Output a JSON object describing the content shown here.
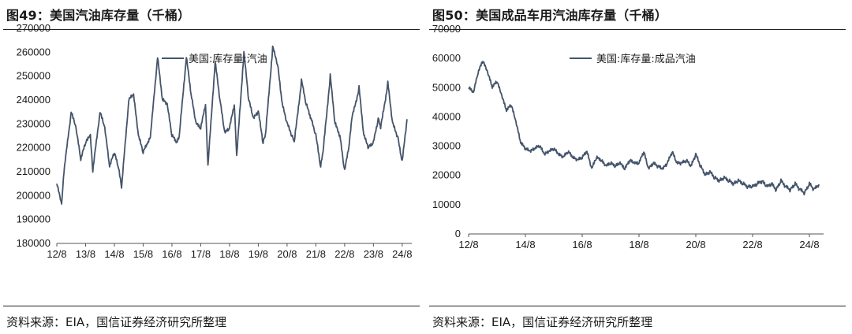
{
  "charts": [
    {
      "title": "图49：美国汽油库存量（千桶）",
      "source": "资料来源：EIA，国信证券经济研究所整理",
      "chart_data": {
        "type": "line",
        "title": "图49：美国汽油库存量（千桶）",
        "xlabel": "",
        "ylabel": "",
        "ylim": [
          180000,
          270000
        ],
        "yticks": [
          "180000",
          "190000",
          "200000",
          "210000",
          "220000",
          "230000",
          "240000",
          "250000",
          "260000",
          "270000"
        ],
        "xticks": [
          "12/8",
          "13/8",
          "14/8",
          "15/8",
          "16/8",
          "17/8",
          "18/8",
          "19/8",
          "20/8",
          "21/8",
          "22/8",
          "23/8",
          "24/8"
        ],
        "legend_position": "top-center",
        "grid": false,
        "color": "#44546a",
        "series": [
          {
            "name": "美国:库存量:汽油",
            "x": [
              "12/8",
              "12/10",
              "12/11",
              "13/2",
              "13/4",
              "13/6",
              "13/8",
              "13/10",
              "13/11",
              "14/2",
              "14/4",
              "14/6",
              "14/8",
              "14/10",
              "14/11",
              "15/2",
              "15/4",
              "15/6",
              "15/8",
              "15/10",
              "15/11",
              "16/2",
              "16/4",
              "16/6",
              "16/8",
              "16/10",
              "16/11",
              "17/2",
              "17/4",
              "17/6",
              "17/8",
              "17/10",
              "17/11",
              "18/2",
              "18/4",
              "18/6",
              "18/8",
              "18/10",
              "18/11",
              "19/2",
              "19/4",
              "19/6",
              "19/8",
              "19/10",
              "19/11",
              "20/2",
              "20/4",
              "20/6",
              "20/8",
              "20/10",
              "20/11",
              "21/2",
              "21/4",
              "21/6",
              "21/8",
              "21/10",
              "21/11",
              "22/2",
              "22/4",
              "22/6",
              "22/8",
              "22/10",
              "22/11",
              "23/2",
              "23/4",
              "23/6",
              "23/8",
              "23/10",
              "23/11",
              "24/2",
              "24/4",
              "24/6",
              "24/8",
              "24/10"
            ],
            "values": [
              205000,
              196000,
              210000,
              235000,
              228000,
              215000,
              222000,
              225000,
              210000,
              235000,
              228000,
              212000,
              218000,
              210000,
              203000,
              240000,
              242000,
              225000,
              218000,
              222000,
              224000,
              258000,
              240000,
              238000,
              225000,
              222000,
              224000,
              258000,
              242000,
              230000,
              228000,
              238000,
              212000,
              256000,
              240000,
              226000,
              228000,
              238000,
              216000,
              260000,
              240000,
              232000,
              235000,
              222000,
              225000,
              262000,
              255000,
              238000,
              230000,
              225000,
              222000,
              248000,
              238000,
              232000,
              225000,
              212000,
              218000,
              250000,
              230000,
              225000,
              210000,
              222000,
              232000,
              245000,
              225000,
              220000,
              222000,
              232000,
              228000,
              247000,
              230000,
              225000,
              214000,
              232000
            ]
          }
        ]
      }
    },
    {
      "title": "图50：美国成品车用汽油库存量（千桶）",
      "source": "资料来源：EIA，国信证券经济研究所整理",
      "chart_data": {
        "type": "line",
        "title": "图50：美国成品车用汽油库存量（千桶）",
        "xlabel": "",
        "ylabel": "",
        "ylim": [
          0,
          70000
        ],
        "yticks": [
          "0",
          "10000",
          "20000",
          "30000",
          "40000",
          "50000",
          "60000",
          "70000"
        ],
        "xticks": [
          "12/8",
          "14/8",
          "16/8",
          "18/8",
          "20/8",
          "22/8",
          "24/8"
        ],
        "legend_position": "top-center",
        "grid": false,
        "color": "#44546a",
        "series": [
          {
            "name": "美国:库存量:成品汽油",
            "x": [
              "12/8",
              "12/10",
              "12/12",
              "13/2",
              "13/4",
              "13/6",
              "13/8",
              "13/10",
              "13/12",
              "14/2",
              "14/4",
              "14/6",
              "14/8",
              "14/10",
              "14/12",
              "15/2",
              "15/4",
              "15/6",
              "15/8",
              "15/10",
              "15/12",
              "16/2",
              "16/4",
              "16/6",
              "16/8",
              "16/10",
              "16/12",
              "17/2",
              "17/4",
              "17/6",
              "17/8",
              "17/10",
              "17/12",
              "18/2",
              "18/4",
              "18/6",
              "18/8",
              "18/10",
              "18/12",
              "19/2",
              "19/4",
              "19/6",
              "19/8",
              "19/10",
              "19/12",
              "20/2",
              "20/4",
              "20/6",
              "20/8",
              "20/10",
              "20/12",
              "21/2",
              "21/4",
              "21/6",
              "21/8",
              "21/10",
              "21/12",
              "22/2",
              "22/4",
              "22/6",
              "22/8",
              "22/10",
              "22/12",
              "23/2",
              "23/4",
              "23/6",
              "23/8",
              "23/10",
              "23/12",
              "24/2",
              "24/4",
              "24/6",
              "24/8",
              "24/10",
              "24/12"
            ],
            "values": [
              50000,
              48000,
              55000,
              59000,
              55000,
              50000,
              52000,
              47000,
              42000,
              44000,
              38000,
              31000,
              29000,
              28000,
              29000,
              30000,
              27000,
              28000,
              29000,
              27000,
              26000,
              28000,
              26000,
              25000,
              26000,
              28000,
              22000,
              26000,
              25000,
              23000,
              24000,
              23000,
              24000,
              22000,
              25000,
              24000,
              24000,
              28000,
              22000,
              24000,
              23000,
              22000,
              24000,
              28000,
              24000,
              24000,
              25000,
              23000,
              27000,
              23000,
              20000,
              21000,
              19000,
              18000,
              19000,
              18000,
              17000,
              18000,
              17000,
              16000,
              16000,
              17000,
              18000,
              16000,
              17000,
              15000,
              18000,
              16000,
              15000,
              17000,
              15000,
              14000,
              17000,
              15000,
              17000
            ]
          }
        ]
      }
    }
  ]
}
